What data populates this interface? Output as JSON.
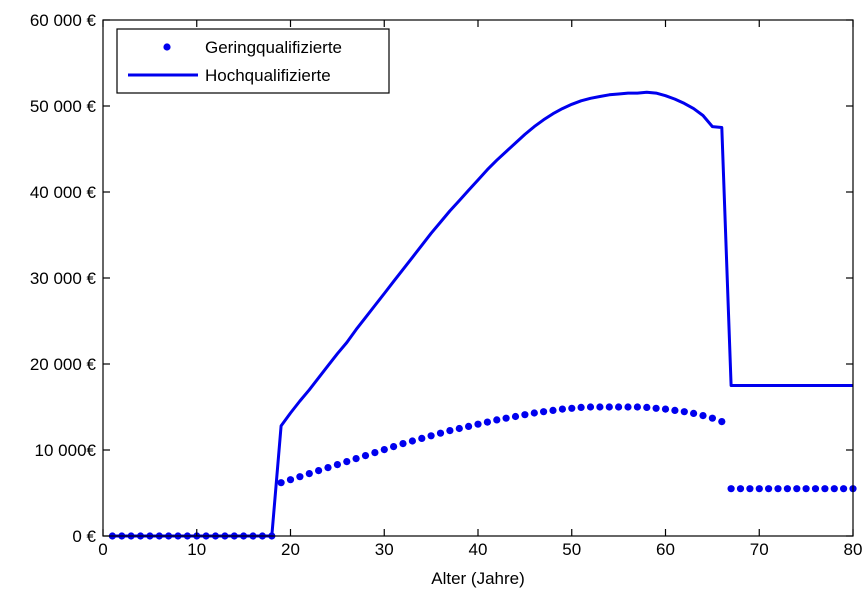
{
  "chart_data": {
    "type": "line",
    "xlabel": "Alter (Jahre)",
    "ylabel": "",
    "xlim": [
      0,
      80
    ],
    "ylim": [
      0,
      60000
    ],
    "x_ticks": [
      {
        "value": 0,
        "label": "0"
      },
      {
        "value": 10,
        "label": "10"
      },
      {
        "value": 20,
        "label": "20"
      },
      {
        "value": 30,
        "label": "30"
      },
      {
        "value": 40,
        "label": "40"
      },
      {
        "value": 50,
        "label": "50"
      },
      {
        "value": 60,
        "label": "60"
      },
      {
        "value": 70,
        "label": "70"
      },
      {
        "value": 80,
        "label": "80"
      }
    ],
    "y_ticks": [
      {
        "value": 0,
        "label": "0 €"
      },
      {
        "value": 10000,
        "label": "10 000€"
      },
      {
        "value": 20000,
        "label": "20 000 €"
      },
      {
        "value": 30000,
        "label": "30 000 €"
      },
      {
        "value": 40000,
        "label": "40 000 €"
      },
      {
        "value": 50000,
        "label": "50 000 €"
      },
      {
        "value": 60000,
        "label": "60 000 €"
      }
    ],
    "grid": false,
    "legend_position": "top-left",
    "series": [
      {
        "name": "Geringqualifizierte",
        "style": "dots",
        "color": "#0000ee",
        "x": [
          1,
          2,
          3,
          4,
          5,
          6,
          7,
          8,
          9,
          10,
          11,
          12,
          13,
          14,
          15,
          16,
          17,
          18,
          19,
          20,
          21,
          22,
          23,
          24,
          25,
          26,
          27,
          28,
          29,
          30,
          31,
          32,
          33,
          34,
          35,
          36,
          37,
          38,
          39,
          40,
          41,
          42,
          43,
          44,
          45,
          46,
          47,
          48,
          49,
          50,
          51,
          52,
          53,
          54,
          55,
          56,
          57,
          58,
          59,
          60,
          61,
          62,
          63,
          64,
          65,
          66,
          67,
          68,
          69,
          70,
          71,
          72,
          73,
          74,
          75,
          76,
          77,
          78,
          79,
          80
        ],
        "y": [
          0,
          0,
          0,
          0,
          0,
          0,
          0,
          0,
          0,
          0,
          0,
          0,
          0,
          0,
          0,
          0,
          0,
          0,
          6200,
          6550,
          6900,
          7250,
          7600,
          7950,
          8300,
          8650,
          9000,
          9350,
          9700,
          10050,
          10400,
          10750,
          11050,
          11350,
          11650,
          11950,
          12250,
          12500,
          12750,
          13000,
          13250,
          13500,
          13700,
          13900,
          14100,
          14300,
          14450,
          14600,
          14750,
          14850,
          14950,
          15000,
          15000,
          15000,
          15000,
          15000,
          15000,
          14950,
          14850,
          14750,
          14600,
          14450,
          14250,
          14000,
          13700,
          13300,
          5500,
          5500,
          5500,
          5500,
          5500,
          5500,
          5500,
          5500,
          5500,
          5500,
          5500,
          5500,
          5500,
          5500
        ]
      },
      {
        "name": "Hochqualifizierte",
        "style": "line",
        "color": "#0000ee",
        "x": [
          1,
          18,
          19,
          20,
          21,
          22,
          23,
          24,
          25,
          26,
          27,
          28,
          29,
          30,
          31,
          32,
          33,
          34,
          35,
          36,
          37,
          38,
          39,
          40,
          41,
          42,
          43,
          44,
          45,
          46,
          47,
          48,
          49,
          50,
          51,
          52,
          53,
          54,
          55,
          56,
          57,
          58,
          59,
          60,
          61,
          62,
          63,
          64,
          65,
          66,
          67,
          68,
          69,
          70,
          71,
          72,
          73,
          74,
          75,
          76,
          77,
          78,
          79,
          80
        ],
        "y": [
          0,
          0,
          12800,
          14300,
          15700,
          17000,
          18400,
          19800,
          21200,
          22500,
          24000,
          25400,
          26800,
          28200,
          29600,
          31000,
          32400,
          33800,
          35200,
          36500,
          37800,
          39000,
          40200,
          41400,
          42600,
          43700,
          44700,
          45700,
          46700,
          47600,
          48400,
          49100,
          49700,
          50200,
          50600,
          50900,
          51100,
          51300,
          51400,
          51500,
          51500,
          51600,
          51500,
          51200,
          50800,
          50300,
          49700,
          48900,
          47600,
          47500,
          17500,
          17500,
          17500,
          17500,
          17500,
          17500,
          17500,
          17500,
          17500,
          17500,
          17500,
          17500,
          17500,
          17500
        ]
      }
    ]
  }
}
